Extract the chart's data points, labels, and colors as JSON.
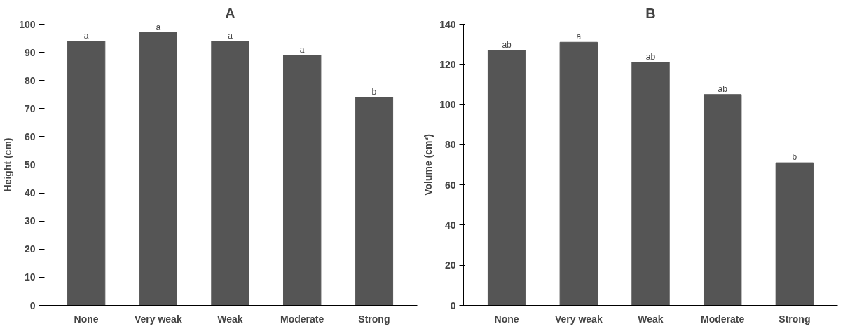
{
  "chart_data": [
    {
      "type": "bar",
      "title": "A",
      "ylabel": "Height (cm)",
      "categories": [
        "None",
        "Very weak",
        "Weak",
        "Moderate",
        "Strong"
      ],
      "values": [
        94,
        97,
        94,
        89,
        74
      ],
      "color": "#555555",
      "ylim": [
        0,
        100
      ],
      "yticks": [
        0,
        10,
        20,
        30,
        40,
        50,
        60,
        70,
        80,
        90,
        100
      ],
      "grid": false,
      "annotations": [
        {
          "text": "a",
          "x": "None",
          "y": 94
        },
        {
          "text": "a",
          "x": "Very weak",
          "y": 97
        },
        {
          "text": "a",
          "x": "Weak",
          "y": 94
        },
        {
          "text": "a",
          "x": "Moderate",
          "y": 89
        },
        {
          "text": "b",
          "x": "Strong",
          "y": 74
        }
      ]
    },
    {
      "type": "bar",
      "title": "B",
      "ylabel": "Volume (cm³)",
      "categories": [
        "None",
        "Very weak",
        "Weak",
        "Moderate",
        "Strong"
      ],
      "values": [
        127,
        131,
        121,
        105,
        71
      ],
      "color": "#555555",
      "ylim": [
        0,
        140
      ],
      "yticks": [
        0,
        20,
        40,
        60,
        80,
        100,
        120,
        140
      ],
      "grid": false,
      "annotations": [
        {
          "text": "ab",
          "x": "None",
          "y": 127
        },
        {
          "text": "a",
          "x": "Very weak",
          "y": 131
        },
        {
          "text": "ab",
          "x": "Weak",
          "y": 121
        },
        {
          "text": "ab",
          "x": "Moderate",
          "y": 105
        },
        {
          "text": "b",
          "x": "Strong",
          "y": 71
        }
      ]
    }
  ]
}
